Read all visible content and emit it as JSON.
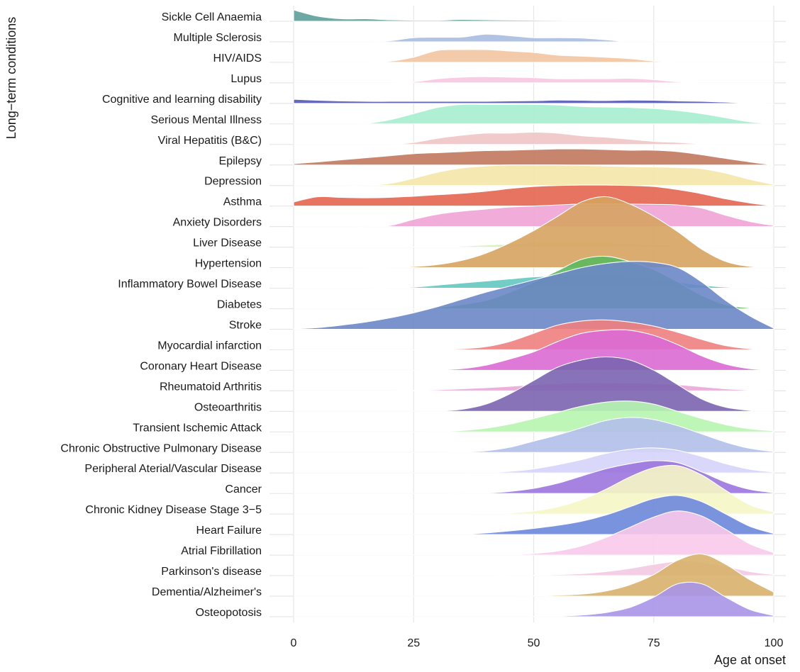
{
  "chart_data": {
    "type": "ridgeline",
    "title": "",
    "xlabel": "Age at onset",
    "ylabel": "Long−term conditions",
    "xlim": [
      0,
      100
    ],
    "x_ticks": [
      0,
      25,
      50,
      75,
      100
    ],
    "grid": true,
    "legend": "none",
    "x": [
      0,
      5,
      10,
      15,
      20,
      25,
      30,
      35,
      40,
      45,
      50,
      55,
      60,
      65,
      70,
      75,
      80,
      85,
      90,
      95,
      100
    ],
    "series": [
      {
        "name": "Sickle Cell Anaemia",
        "color": "#5e9e9a",
        "density": [
          0.55,
          0.25,
          0.12,
          0.12,
          0.07,
          0.05,
          0.05,
          0.09,
          0.07,
          0.06,
          0.05,
          0.04,
          0.03,
          0.02,
          0,
          0,
          0,
          0,
          0,
          0,
          0
        ]
      },
      {
        "name": "Multiple Sclerosis",
        "color": "#a9bde0",
        "density": [
          0,
          0,
          0,
          0,
          0.05,
          0.2,
          0.22,
          0.23,
          0.37,
          0.3,
          0.2,
          0.2,
          0.18,
          0.1,
          0,
          0,
          0,
          0,
          0,
          0,
          0
        ]
      },
      {
        "name": "HIV/AIDS",
        "color": "#f2c5a1",
        "density": [
          0,
          0,
          0,
          0,
          0.05,
          0.25,
          0.58,
          0.62,
          0.62,
          0.55,
          0.48,
          0.35,
          0.3,
          0.25,
          0.18,
          0.06,
          0,
          0,
          0,
          0,
          0
        ]
      },
      {
        "name": "Lupus",
        "color": "#f8c6e3",
        "density": [
          0,
          0,
          0,
          0,
          0,
          0.05,
          0.2,
          0.28,
          0.3,
          0.28,
          0.25,
          0.2,
          0.2,
          0.2,
          0.22,
          0.16,
          0.05,
          0,
          0,
          0,
          0
        ]
      },
      {
        "name": "Cognitive and learning disability",
        "color": "#5459b3",
        "density": [
          0.2,
          0.15,
          0.12,
          0.1,
          0.1,
          0.1,
          0.1,
          0.1,
          0.1,
          0.12,
          0.13,
          0.16,
          0.15,
          0.14,
          0.16,
          0.15,
          0.12,
          0.1,
          0.06,
          0.02,
          0
        ]
      },
      {
        "name": "Serious Mental Illness",
        "color": "#a6eecf",
        "density": [
          0,
          0,
          0,
          0.02,
          0.2,
          0.5,
          0.8,
          0.95,
          0.95,
          0.95,
          0.95,
          0.92,
          0.85,
          0.82,
          0.8,
          0.75,
          0.65,
          0.5,
          0.3,
          0.1,
          0
        ]
      },
      {
        "name": "Viral Hepatitis (B&C)",
        "color": "#f0c5c5",
        "density": [
          0,
          0,
          0,
          0,
          0,
          0.1,
          0.3,
          0.45,
          0.55,
          0.55,
          0.6,
          0.55,
          0.42,
          0.35,
          0.25,
          0.15,
          0.1,
          0.02,
          0,
          0,
          0
        ]
      },
      {
        "name": "Epilepsy",
        "color": "#c2785d",
        "density": [
          0.06,
          0.15,
          0.25,
          0.35,
          0.45,
          0.55,
          0.6,
          0.65,
          0.7,
          0.72,
          0.75,
          0.78,
          0.78,
          0.75,
          0.72,
          0.72,
          0.65,
          0.5,
          0.32,
          0.15,
          0
        ]
      },
      {
        "name": "Depression",
        "color": "#f4e7a8",
        "density": [
          0,
          0,
          0,
          0,
          0.1,
          0.35,
          0.65,
          0.85,
          0.95,
          1.0,
          1.0,
          1.0,
          0.98,
          0.95,
          0.92,
          0.9,
          0.88,
          0.82,
          0.6,
          0.3,
          0.05
        ]
      },
      {
        "name": "Asthma",
        "color": "#e46450",
        "density": [
          0.2,
          0.45,
          0.42,
          0.4,
          0.42,
          0.48,
          0.55,
          0.62,
          0.72,
          0.85,
          0.95,
          1.0,
          1.02,
          1.02,
          1.0,
          0.95,
          0.8,
          0.6,
          0.35,
          0.15,
          0
        ]
      },
      {
        "name": "Anxiety Disorders",
        "color": "#f0a3d6",
        "density": [
          0,
          0,
          0,
          0,
          0.05,
          0.35,
          0.6,
          0.75,
          0.85,
          0.95,
          1.0,
          1.05,
          1.1,
          1.1,
          1.1,
          1.08,
          1.05,
          0.9,
          0.55,
          0.25,
          0.05
        ]
      },
      {
        "name": "Liver Disease",
        "color": "#d6efb3",
        "density": [
          0,
          0,
          0,
          0,
          0,
          0,
          0.02,
          0.05,
          0.1,
          0.15,
          0.22,
          0.25,
          0.25,
          0.22,
          0.18,
          0.12,
          0.06,
          0.02,
          0,
          0,
          0
        ]
      },
      {
        "name": "Hypertension",
        "color": "#d6a361",
        "density": [
          0,
          0,
          0,
          0,
          0,
          0.05,
          0.15,
          0.35,
          0.7,
          1.2,
          1.8,
          2.5,
          3.2,
          3.45,
          3.1,
          2.5,
          1.75,
          0.9,
          0.3,
          0.06,
          0
        ]
      },
      {
        "name": "Inflammatory Bowel Disease",
        "color": "#63c8c1",
        "density": [
          0,
          0,
          0,
          0,
          0,
          0.05,
          0.15,
          0.25,
          0.35,
          0.45,
          0.55,
          0.6,
          0.62,
          0.6,
          0.55,
          0.45,
          0.3,
          0.15,
          0.05,
          0,
          0
        ]
      },
      {
        "name": "Diabetes",
        "color": "#5cb85c",
        "density": [
          0,
          0,
          0,
          0,
          0,
          0,
          0.05,
          0.2,
          0.4,
          0.8,
          1.3,
          1.85,
          2.4,
          2.55,
          2.3,
          1.9,
          1.3,
          0.65,
          0.2,
          0.04,
          0
        ]
      },
      {
        "name": "Stroke",
        "color": "#6b87c7",
        "density": [
          0.02,
          0.08,
          0.2,
          0.35,
          0.55,
          0.8,
          1.1,
          1.45,
          1.8,
          2.1,
          2.4,
          2.7,
          3.0,
          3.2,
          3.3,
          3.25,
          3.0,
          2.3,
          1.4,
          0.65,
          0.05
        ]
      },
      {
        "name": "Myocardial infarction",
        "color": "#f08080",
        "density": [
          0,
          0,
          0,
          0,
          0,
          0,
          0.02,
          0.05,
          0.15,
          0.4,
          0.8,
          1.2,
          1.4,
          1.45,
          1.35,
          1.15,
          0.85,
          0.5,
          0.2,
          0.05,
          0
        ]
      },
      {
        "name": "Coronary Heart Disease",
        "color": "#dc6ad4",
        "density": [
          0,
          0,
          0,
          0,
          0,
          0,
          0.02,
          0.08,
          0.25,
          0.55,
          0.9,
          1.4,
          1.8,
          1.95,
          1.95,
          1.7,
          1.25,
          0.7,
          0.3,
          0.08,
          0
        ]
      },
      {
        "name": "Rheumatoid Arthritis",
        "color": "#eba7d8",
        "density": [
          0,
          0,
          0,
          0,
          0,
          0.02,
          0.05,
          0.1,
          0.15,
          0.22,
          0.3,
          0.35,
          0.4,
          0.4,
          0.38,
          0.35,
          0.3,
          0.2,
          0.1,
          0.03,
          0
        ]
      },
      {
        "name": "Osteoarthritis",
        "color": "#7b64b0",
        "density": [
          0,
          0,
          0,
          0,
          0,
          0,
          0.02,
          0.1,
          0.35,
          0.85,
          1.5,
          2.15,
          2.5,
          2.65,
          2.5,
          2.0,
          1.3,
          0.6,
          0.2,
          0.05,
          0
        ]
      },
      {
        "name": "Transient Ischemic Attack",
        "color": "#b7f5b0",
        "density": [
          0,
          0,
          0,
          0,
          0,
          0,
          0.02,
          0.07,
          0.18,
          0.38,
          0.65,
          0.95,
          1.25,
          1.45,
          1.5,
          1.35,
          1.0,
          0.65,
          0.35,
          0.15,
          0.05
        ]
      },
      {
        "name": "Chronic Obstructive Pulmonary Disease",
        "color": "#b1bfe9",
        "density": [
          0,
          0,
          0,
          0,
          0,
          0,
          0,
          0.02,
          0.08,
          0.25,
          0.55,
          0.85,
          1.2,
          1.55,
          1.7,
          1.6,
          1.3,
          0.9,
          0.5,
          0.2,
          0.04
        ]
      },
      {
        "name": "Peripheral Aterial/Vascular Disease",
        "color": "#d6d4fa",
        "density": [
          0,
          0,
          0,
          0,
          0,
          0,
          0,
          0,
          0.02,
          0.08,
          0.2,
          0.4,
          0.65,
          0.95,
          1.15,
          1.22,
          1.1,
          0.8,
          0.45,
          0.18,
          0.04
        ]
      },
      {
        "name": "Cancer",
        "color": "#9c74de",
        "density": [
          0,
          0,
          0,
          0,
          0,
          0,
          0,
          0,
          0.03,
          0.1,
          0.25,
          0.5,
          0.85,
          1.2,
          1.45,
          1.6,
          1.5,
          1.05,
          0.55,
          0.2,
          0.04
        ]
      },
      {
        "name": "Chronic Kidney Disease Stage 3−5",
        "color": "#f6f6c6",
        "density": [
          0,
          0,
          0,
          0,
          0,
          0,
          0,
          0,
          0.01,
          0.05,
          0.15,
          0.35,
          0.7,
          1.2,
          1.8,
          2.25,
          2.35,
          1.9,
          1.15,
          0.45,
          0.1
        ]
      },
      {
        "name": "Heart Failure",
        "color": "#6b87dc",
        "density": [
          0,
          0,
          0,
          0,
          0,
          0,
          0,
          0.02,
          0.08,
          0.18,
          0.3,
          0.45,
          0.65,
          0.95,
          1.35,
          1.75,
          1.9,
          1.6,
          1.0,
          0.4,
          0.05
        ]
      },
      {
        "name": "Atrial Fibrillation",
        "color": "#f9c9eb",
        "density": [
          0,
          0,
          0,
          0,
          0,
          0,
          0,
          0,
          0,
          0.02,
          0.08,
          0.2,
          0.45,
          0.85,
          1.35,
          1.85,
          2.15,
          1.9,
          1.25,
          0.55,
          0.12
        ]
      },
      {
        "name": "Parkinson's disease",
        "color": "#f3c9e2",
        "density": [
          0,
          0,
          0,
          0,
          0,
          0,
          0,
          0,
          0,
          0,
          0.02,
          0.05,
          0.1,
          0.2,
          0.35,
          0.55,
          0.7,
          0.65,
          0.45,
          0.2,
          0.05
        ]
      },
      {
        "name": "Dementia/Alzheimer's",
        "color": "#d8b16c",
        "density": [
          0,
          0,
          0,
          0,
          0,
          0,
          0,
          0,
          0,
          0,
          0.02,
          0.05,
          0.1,
          0.25,
          0.55,
          1.05,
          1.75,
          2.05,
          1.55,
          0.8,
          0.2
        ]
      },
      {
        "name": "Osteopotosis",
        "color": "#a995e8",
        "density": [
          0,
          0,
          0,
          0,
          0,
          0,
          0,
          0,
          0,
          0,
          0.01,
          0.03,
          0.08,
          0.2,
          0.45,
          0.95,
          1.6,
          1.6,
          0.95,
          0.35,
          0.06
        ]
      }
    ]
  }
}
